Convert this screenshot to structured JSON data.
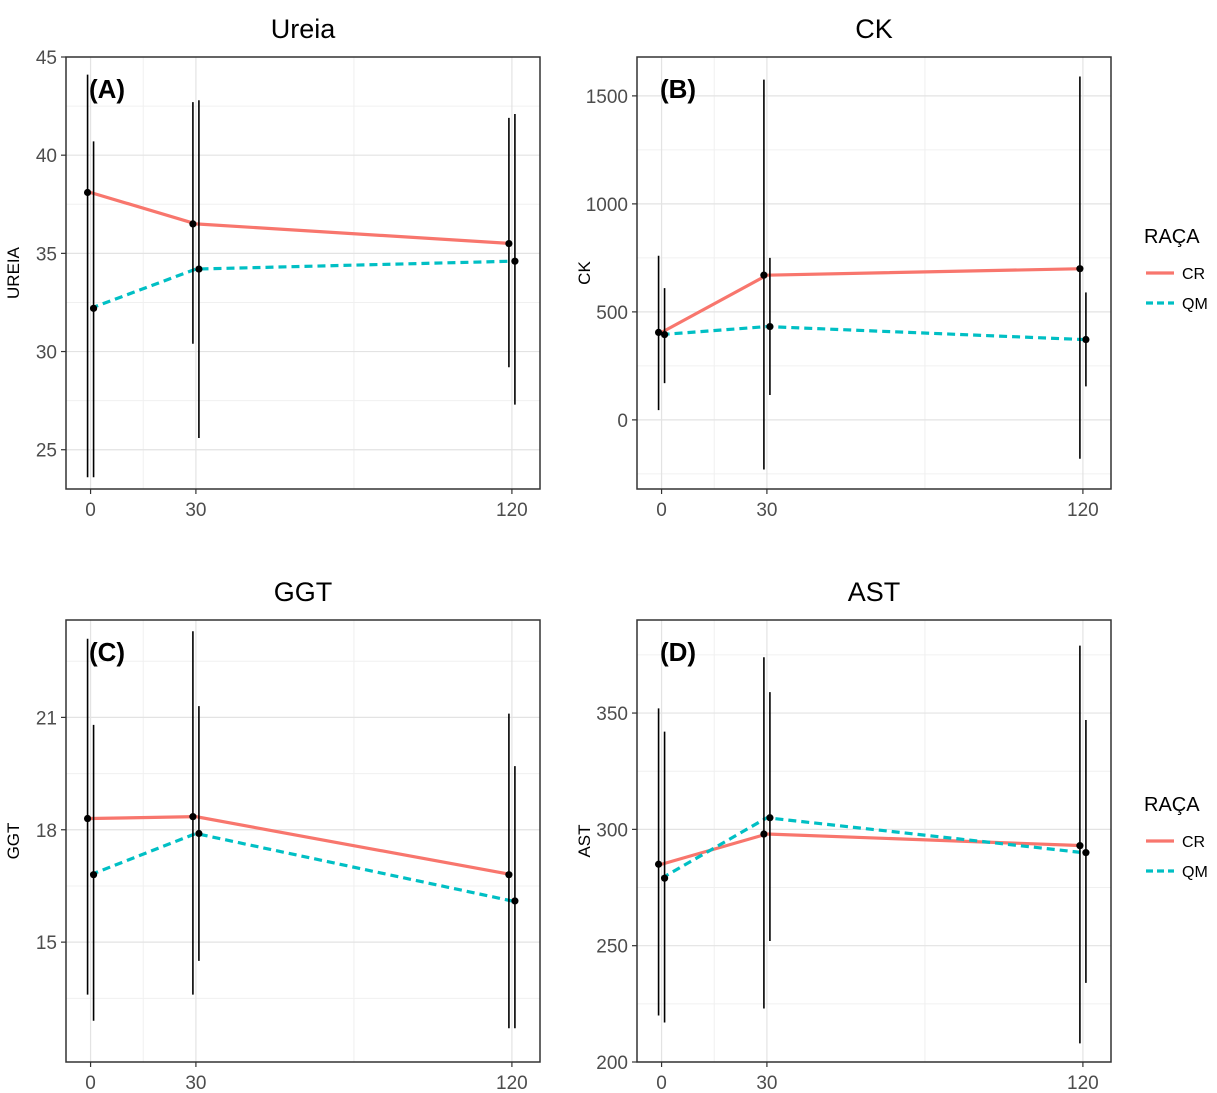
{
  "legend": {
    "title": "RAÇA",
    "entries": [
      {
        "label": "CR",
        "color": "#F8766D",
        "linestyle": "solid"
      },
      {
        "label": "QM",
        "color": "#00BFC4",
        "linestyle": "dashed"
      }
    ]
  },
  "chart_data": [
    {
      "type": "line",
      "title": "Ureia",
      "panel_label": "(A)",
      "xlabel": "",
      "ylabel": "UREIA",
      "x": [
        0,
        30,
        120
      ],
      "x_ticks": [
        "0",
        "30",
        "120"
      ],
      "xlim": [
        -7,
        128
      ],
      "ylim": [
        23,
        45
      ],
      "y_ticks": [
        "25",
        "30",
        "35",
        "40",
        "45"
      ],
      "y_tick_values": [
        25,
        30,
        35,
        40,
        45
      ],
      "grid": true,
      "series": [
        {
          "name": "CR",
          "values": [
            38.1,
            36.5,
            35.5
          ],
          "error_low": [
            23.6,
            30.4,
            29.2
          ],
          "error_high": [
            44.1,
            42.7,
            41.9
          ]
        },
        {
          "name": "QM",
          "values": [
            32.2,
            34.2,
            34.6
          ],
          "error_low": [
            23.6,
            25.6,
            27.3
          ],
          "error_high": [
            40.7,
            42.8,
            42.1
          ]
        }
      ]
    },
    {
      "type": "line",
      "title": "CK",
      "panel_label": "(B)",
      "xlabel": "",
      "ylabel": "CK",
      "x": [
        0,
        30,
        120
      ],
      "x_ticks": [
        "0",
        "30",
        "120"
      ],
      "xlim": [
        -7,
        128
      ],
      "ylim": [
        -320,
        1680
      ],
      "y_ticks": [
        "0",
        "500",
        "1000",
        "1500"
      ],
      "y_tick_values": [
        0,
        500,
        1000,
        1500
      ],
      "grid": true,
      "legend_position": "right",
      "series": [
        {
          "name": "CR",
          "values": [
            405,
            670,
            700
          ],
          "error_low": [
            45,
            -230,
            -180
          ],
          "error_high": [
            760,
            1575,
            1590
          ]
        },
        {
          "name": "QM",
          "values": [
            395,
            432,
            372
          ],
          "error_low": [
            170,
            115,
            155
          ],
          "error_high": [
            610,
            750,
            590
          ]
        }
      ]
    },
    {
      "type": "line",
      "title": "GGT",
      "panel_label": "(C)",
      "xlabel": "",
      "ylabel": "GGT",
      "x": [
        0,
        30,
        120
      ],
      "x_ticks": [
        "0",
        "30",
        "120"
      ],
      "xlim": [
        -7,
        128
      ],
      "ylim": [
        11.8,
        23.6
      ],
      "y_ticks": [
        "15",
        "18",
        "21"
      ],
      "y_tick_values": [
        15,
        18,
        21
      ],
      "grid": true,
      "series": [
        {
          "name": "CR",
          "values": [
            18.3,
            18.35,
            16.8
          ],
          "error_low": [
            13.6,
            13.6,
            12.7
          ],
          "error_high": [
            23.1,
            23.3,
            21.1
          ]
        },
        {
          "name": "QM",
          "values": [
            16.8,
            17.9,
            16.1
          ],
          "error_low": [
            12.9,
            14.5,
            12.7
          ],
          "error_high": [
            20.8,
            21.3,
            19.7
          ]
        }
      ]
    },
    {
      "type": "line",
      "title": "AST",
      "panel_label": "(D)",
      "xlabel": "",
      "ylabel": "AST",
      "x": [
        0,
        30,
        120
      ],
      "x_ticks": [
        "0",
        "30",
        "120"
      ],
      "xlim": [
        -7,
        128
      ],
      "ylim": [
        200,
        390
      ],
      "y_ticks": [
        "200",
        "250",
        "300",
        "350"
      ],
      "y_tick_values": [
        200,
        250,
        300,
        350
      ],
      "grid": true,
      "legend_position": "right",
      "series": [
        {
          "name": "CR",
          "values": [
            285,
            298,
            293
          ],
          "error_low": [
            220,
            223,
            208
          ],
          "error_high": [
            352,
            374,
            379
          ]
        },
        {
          "name": "QM",
          "values": [
            279,
            305,
            290
          ],
          "error_low": [
            217,
            252,
            234
          ],
          "error_high": [
            342,
            359,
            347
          ]
        }
      ]
    }
  ]
}
